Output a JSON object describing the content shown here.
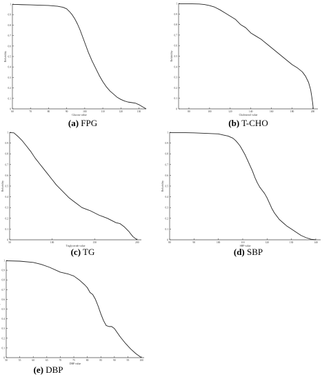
{
  "chart_data": [
    {
      "id": "a",
      "type": "line",
      "caption": {
        "tag": "(a)",
        "label": "FPG"
      },
      "xlabel": "Glucose value",
      "ylabel": "Reliability",
      "xlim": [
        60,
        134
      ],
      "ylim": [
        0,
        1
      ],
      "xticks": [
        60,
        70,
        80,
        90,
        100,
        110,
        120,
        130
      ],
      "yticks": [
        0,
        0.1,
        0.2,
        0.3,
        0.4,
        0.5,
        0.6,
        0.7,
        0.8,
        0.9,
        1
      ],
      "series": [
        {
          "x": [
            60,
            62,
            65,
            70,
            75,
            80,
            85,
            88,
            90,
            91.5,
            93,
            94.5,
            96,
            97.5,
            99,
            100.5,
            102,
            104,
            106,
            108,
            110,
            112,
            114,
            116,
            118,
            120,
            122,
            124,
            126,
            128,
            130,
            132,
            134
          ],
          "y": [
            0.997,
            0.997,
            0.995,
            0.993,
            0.99,
            0.987,
            0.98,
            0.97,
            0.955,
            0.93,
            0.9,
            0.86,
            0.81,
            0.75,
            0.68,
            0.61,
            0.54,
            0.46,
            0.39,
            0.32,
            0.26,
            0.21,
            0.17,
            0.14,
            0.11,
            0.09,
            0.075,
            0.065,
            0.06,
            0.055,
            0.04,
            0.02,
            0.0
          ]
        }
      ]
    },
    {
      "id": "b",
      "type": "line",
      "caption": {
        "tag": "(b)",
        "label": "T-CHO"
      },
      "xlabel": "Cholesterol value",
      "ylabel": "Reliability",
      "xlim": [
        70,
        205
      ],
      "ylim": [
        0,
        1
      ],
      "xticks": [
        80,
        100,
        120,
        140,
        160,
        180,
        200
      ],
      "yticks": [
        0,
        0.1,
        0.2,
        0.3,
        0.4,
        0.5,
        0.6,
        0.7,
        0.8,
        0.9,
        1
      ],
      "series": [
        {
          "x": [
            70,
            80,
            90,
            95,
            100,
            105,
            110,
            115,
            120,
            125,
            130,
            135,
            140,
            145,
            150,
            155,
            160,
            165,
            170,
            175,
            180,
            185,
            190,
            193,
            196,
            198,
            199,
            200,
            200.5
          ],
          "y": [
            0.997,
            0.997,
            0.995,
            0.99,
            0.98,
            0.965,
            0.94,
            0.91,
            0.88,
            0.85,
            0.8,
            0.77,
            0.72,
            0.69,
            0.66,
            0.62,
            0.58,
            0.54,
            0.5,
            0.46,
            0.42,
            0.39,
            0.35,
            0.31,
            0.25,
            0.18,
            0.12,
            0.05,
            0.0
          ]
        }
      ]
    },
    {
      "id": "c",
      "type": "line",
      "caption": {
        "tag": "(c)",
        "label": "TG"
      },
      "xlabel": "Triglyceride value",
      "ylabel": "Reliability",
      "xlim": [
        50,
        205
      ],
      "ylim": [
        0,
        1
      ],
      "xticks": [
        50,
        100,
        150,
        200
      ],
      "yticks": [
        0,
        0.1,
        0.2,
        0.3,
        0.4,
        0.5,
        0.6,
        0.7,
        0.8,
        0.9,
        1
      ],
      "series": [
        {
          "x": [
            50,
            55,
            60,
            65,
            70,
            75,
            80,
            85,
            90,
            95,
            100,
            105,
            110,
            115,
            120,
            125,
            130,
            135,
            140,
            145,
            150,
            155,
            160,
            165,
            170,
            175,
            180,
            185,
            190,
            195,
            200
          ],
          "y": [
            0.997,
            0.995,
            0.96,
            0.92,
            0.87,
            0.82,
            0.76,
            0.71,
            0.66,
            0.61,
            0.56,
            0.51,
            0.47,
            0.43,
            0.39,
            0.36,
            0.33,
            0.3,
            0.285,
            0.27,
            0.25,
            0.23,
            0.215,
            0.2,
            0.18,
            0.16,
            0.15,
            0.12,
            0.08,
            0.03,
            0.0
          ]
        }
      ]
    },
    {
      "id": "d",
      "type": "line",
      "caption": {
        "tag": "(d)",
        "label": "SBP"
      },
      "xlabel": "SBP value",
      "ylabel": "Reliability",
      "xlim": [
        80,
        142
      ],
      "ylim": [
        0,
        1
      ],
      "xticks": [
        80,
        90,
        100,
        110,
        120,
        130,
        140
      ],
      "yticks": [
        0,
        0.1,
        0.2,
        0.3,
        0.4,
        0.5,
        0.6,
        0.7,
        0.8,
        0.9,
        1
      ],
      "series": [
        {
          "x": [
            80,
            85,
            90,
            95,
            100,
            102,
            104,
            106,
            107,
            108,
            109,
            110,
            111,
            112,
            113,
            114,
            115,
            116,
            117,
            118,
            119,
            120,
            121,
            122,
            123,
            124,
            125,
            126,
            127,
            128,
            130,
            132,
            134,
            136,
            138,
            140
          ],
          "y": [
            0.997,
            0.997,
            0.995,
            0.99,
            0.985,
            0.975,
            0.965,
            0.945,
            0.925,
            0.9,
            0.87,
            0.83,
            0.79,
            0.74,
            0.69,
            0.64,
            0.58,
            0.53,
            0.49,
            0.46,
            0.43,
            0.39,
            0.34,
            0.29,
            0.25,
            0.22,
            0.19,
            0.17,
            0.15,
            0.13,
            0.1,
            0.07,
            0.04,
            0.02,
            0.005,
            0.0
          ]
        }
      ]
    },
    {
      "id": "e",
      "type": "line",
      "caption": {
        "tag": "(e)",
        "label": "DBP"
      },
      "xlabel": "DBP value",
      "ylabel": "Reliability",
      "xlim": [
        50,
        101
      ],
      "ylim": [
        0,
        1
      ],
      "xticks": [
        50,
        55,
        60,
        65,
        70,
        75,
        80,
        85,
        90,
        95,
        100
      ],
      "yticks": [
        0,
        0.1,
        0.2,
        0.3,
        0.4,
        0.5,
        0.6,
        0.7,
        0.8,
        0.9,
        1
      ],
      "series": [
        {
          "x": [
            50,
            55,
            60,
            63,
            66,
            70,
            73,
            75,
            77,
            79,
            80,
            81,
            82,
            83,
            84,
            85,
            86,
            87,
            88,
            89,
            90,
            91,
            92,
            94,
            96,
            98,
            100
          ],
          "y": [
            0.997,
            0.993,
            0.98,
            0.96,
            0.93,
            0.88,
            0.86,
            0.84,
            0.8,
            0.75,
            0.72,
            0.67,
            0.65,
            0.6,
            0.53,
            0.45,
            0.38,
            0.33,
            0.32,
            0.32,
            0.3,
            0.26,
            0.22,
            0.15,
            0.09,
            0.04,
            0.0
          ]
        }
      ]
    }
  ]
}
